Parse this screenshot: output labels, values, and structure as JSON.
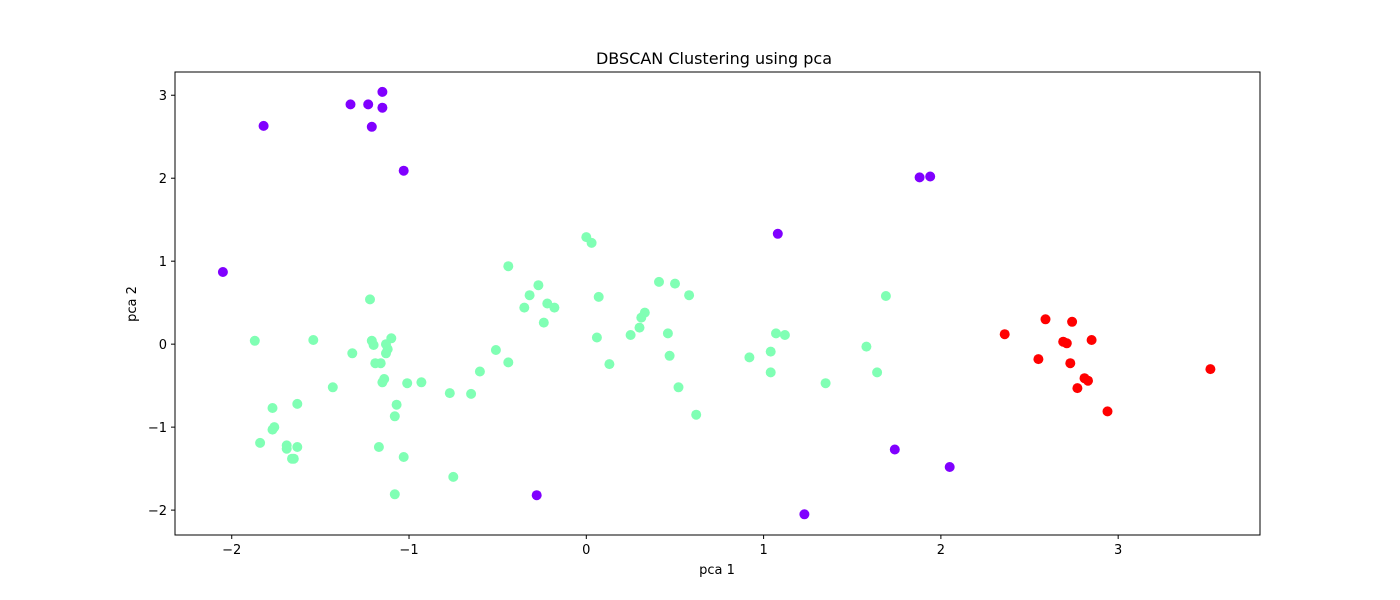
{
  "chart_data": {
    "type": "scatter",
    "title": "DBSCAN Clustering using pca",
    "xlabel": "pca 1",
    "ylabel": "pca 2",
    "xlim": [
      -2.32,
      3.8
    ],
    "ylim": [
      -2.3,
      3.28
    ],
    "xticks": [
      -2,
      -1,
      0,
      1,
      2,
      3
    ],
    "yticks": [
      -2,
      -1,
      0,
      1,
      2,
      3
    ],
    "grid": false,
    "legend": "none",
    "colors": {
      "noise": "#8000ff",
      "cluster_0": "#80ffb4",
      "cluster_1": "#ff0000"
    },
    "series": [
      {
        "color_key": "noise",
        "points": [
          [
            -2.05,
            0.87
          ],
          [
            -1.82,
            2.63
          ],
          [
            -1.33,
            2.89
          ],
          [
            -1.23,
            2.89
          ],
          [
            -1.15,
            3.04
          ],
          [
            -1.15,
            2.85
          ],
          [
            -1.21,
            2.62
          ],
          [
            -1.03,
            2.09
          ],
          [
            1.08,
            1.33
          ],
          [
            1.88,
            2.01
          ],
          [
            1.94,
            2.02
          ],
          [
            -0.28,
            -1.82
          ],
          [
            1.23,
            -2.05
          ],
          [
            1.74,
            -1.27
          ],
          [
            2.05,
            -1.48
          ]
        ]
      },
      {
        "color_key": "cluster_0",
        "points": [
          [
            -1.87,
            0.04
          ],
          [
            -1.84,
            -1.19
          ],
          [
            -1.77,
            -0.77
          ],
          [
            -1.76,
            -1.0
          ],
          [
            -1.77,
            -1.03
          ],
          [
            -1.69,
            -1.22
          ],
          [
            -1.69,
            -1.26
          ],
          [
            -1.66,
            -1.38
          ],
          [
            -1.65,
            -1.38
          ],
          [
            -1.63,
            -1.24
          ],
          [
            -1.63,
            -0.72
          ],
          [
            -1.54,
            0.05
          ],
          [
            -1.43,
            -0.52
          ],
          [
            -1.32,
            -0.11
          ],
          [
            -1.22,
            0.54
          ],
          [
            -1.21,
            0.04
          ],
          [
            -1.2,
            -0.01
          ],
          [
            -1.19,
            -0.23
          ],
          [
            -1.16,
            -0.23
          ],
          [
            -1.13,
            -0.11
          ],
          [
            -1.13,
            0.0
          ],
          [
            -1.12,
            -0.06
          ],
          [
            -1.1,
            0.07
          ],
          [
            -1.15,
            -0.46
          ],
          [
            -1.14,
            -0.42
          ],
          [
            -1.17,
            -1.24
          ],
          [
            -1.08,
            -0.87
          ],
          [
            -1.07,
            -0.73
          ],
          [
            -1.08,
            -1.81
          ],
          [
            -1.03,
            -1.36
          ],
          [
            -1.01,
            -0.47
          ],
          [
            -0.93,
            -0.46
          ],
          [
            -0.77,
            -0.59
          ],
          [
            -0.75,
            -1.6
          ],
          [
            -0.65,
            -0.6
          ],
          [
            -0.6,
            -0.33
          ],
          [
            -0.51,
            -0.07
          ],
          [
            -0.44,
            0.94
          ],
          [
            -0.44,
            -0.22
          ],
          [
            -0.35,
            0.44
          ],
          [
            -0.32,
            0.59
          ],
          [
            -0.27,
            0.71
          ],
          [
            -0.24,
            0.26
          ],
          [
            -0.22,
            0.49
          ],
          [
            -0.18,
            0.44
          ],
          [
            0.0,
            1.29
          ],
          [
            0.03,
            1.22
          ],
          [
            0.07,
            0.57
          ],
          [
            0.06,
            0.08
          ],
          [
            0.13,
            -0.24
          ],
          [
            0.25,
            0.11
          ],
          [
            0.3,
            0.2
          ],
          [
            0.31,
            0.32
          ],
          [
            0.33,
            0.38
          ],
          [
            0.41,
            0.75
          ],
          [
            0.46,
            0.13
          ],
          [
            0.47,
            -0.14
          ],
          [
            0.5,
            0.73
          ],
          [
            0.52,
            -0.52
          ],
          [
            0.58,
            0.59
          ],
          [
            0.62,
            -0.85
          ],
          [
            0.92,
            -0.16
          ],
          [
            1.04,
            -0.09
          ],
          [
            1.04,
            -0.34
          ],
          [
            1.07,
            0.13
          ],
          [
            1.12,
            0.11
          ],
          [
            1.35,
            -0.47
          ],
          [
            1.58,
            -0.03
          ],
          [
            1.64,
            -0.34
          ],
          [
            1.69,
            0.58
          ]
        ]
      },
      {
        "color_key": "cluster_1",
        "points": [
          [
            2.36,
            0.12
          ],
          [
            2.55,
            -0.18
          ],
          [
            2.59,
            0.3
          ],
          [
            2.69,
            0.03
          ],
          [
            2.71,
            0.01
          ],
          [
            2.73,
            -0.23
          ],
          [
            2.74,
            0.27
          ],
          [
            2.77,
            -0.53
          ],
          [
            2.81,
            -0.41
          ],
          [
            2.83,
            -0.44
          ],
          [
            2.85,
            0.05
          ],
          [
            2.94,
            -0.81
          ],
          [
            3.52,
            -0.3
          ]
        ]
      }
    ]
  }
}
